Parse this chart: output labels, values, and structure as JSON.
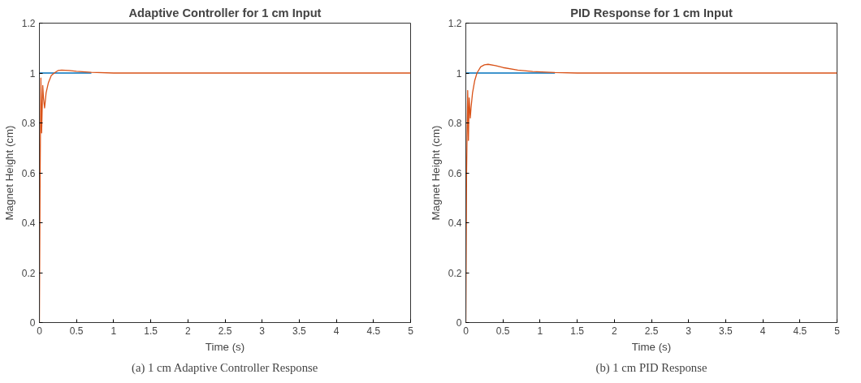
{
  "chart_data": [
    {
      "type": "line",
      "title": "Adaptive Controller for 1 cm Input",
      "xlabel": "Time (s)",
      "ylabel": "Magnet Height (cm)",
      "annotations": [
        "(a) 1 cm Adaptive Controller Response"
      ],
      "xlim": [
        0,
        5
      ],
      "ylim": [
        0,
        1.2
      ],
      "xticks": [
        0,
        0.5,
        1,
        1.5,
        2,
        2.5,
        3,
        3.5,
        4,
        4.5,
        5
      ],
      "yticks": [
        0,
        0.2,
        0.4,
        0.6,
        0.8,
        1,
        1.2
      ],
      "grid": false,
      "series": [
        {
          "color": "#0072bd",
          "x": [
            0,
            0.7
          ],
          "values": [
            1,
            1
          ]
        },
        {
          "color": "#d95319",
          "x": [
            0,
            0.01,
            0.02,
            0.03,
            0.045,
            0.055,
            0.07,
            0.09,
            0.12,
            0.16,
            0.2,
            0.25,
            0.3,
            0.4,
            0.5,
            0.7,
            1.0,
            1.5,
            2,
            3,
            4,
            5
          ],
          "values": [
            0,
            0.6,
            0.98,
            0.76,
            0.95,
            0.9,
            0.86,
            0.92,
            0.96,
            0.99,
            1.0,
            1.01,
            1.012,
            1.01,
            1.007,
            1.003,
            1.0,
            1.0,
            1.0,
            1.0,
            1.0,
            1.0
          ]
        }
      ]
    },
    {
      "type": "line",
      "title": "PID Response for 1 cm Input",
      "xlabel": "Time (s)",
      "ylabel": "Magnet Height (cm)",
      "annotations": [
        "(b) 1 cm PID Response"
      ],
      "xlim": [
        0,
        5
      ],
      "ylim": [
        0,
        1.2
      ],
      "xticks": [
        0,
        0.5,
        1,
        1.5,
        2,
        2.5,
        3,
        3.5,
        4,
        4.5,
        5
      ],
      "yticks": [
        0,
        0.2,
        0.4,
        0.6,
        0.8,
        1,
        1.2
      ],
      "grid": false,
      "series": [
        {
          "color": "#0072bd",
          "x": [
            0,
            1.2
          ],
          "values": [
            1,
            1
          ]
        },
        {
          "color": "#d95319",
          "x": [
            0,
            0.01,
            0.025,
            0.035,
            0.045,
            0.06,
            0.07,
            0.09,
            0.12,
            0.15,
            0.2,
            0.25,
            0.3,
            0.4,
            0.5,
            0.7,
            0.9,
            1.2,
            1.5,
            2,
            3,
            4,
            5
          ],
          "values": [
            0,
            0.6,
            0.93,
            0.73,
            0.9,
            0.82,
            0.86,
            0.92,
            0.97,
            1.0,
            1.025,
            1.033,
            1.035,
            1.03,
            1.022,
            1.012,
            1.006,
            1.002,
            1.0,
            1.0,
            1.0,
            1.0,
            1.0
          ]
        }
      ]
    }
  ]
}
